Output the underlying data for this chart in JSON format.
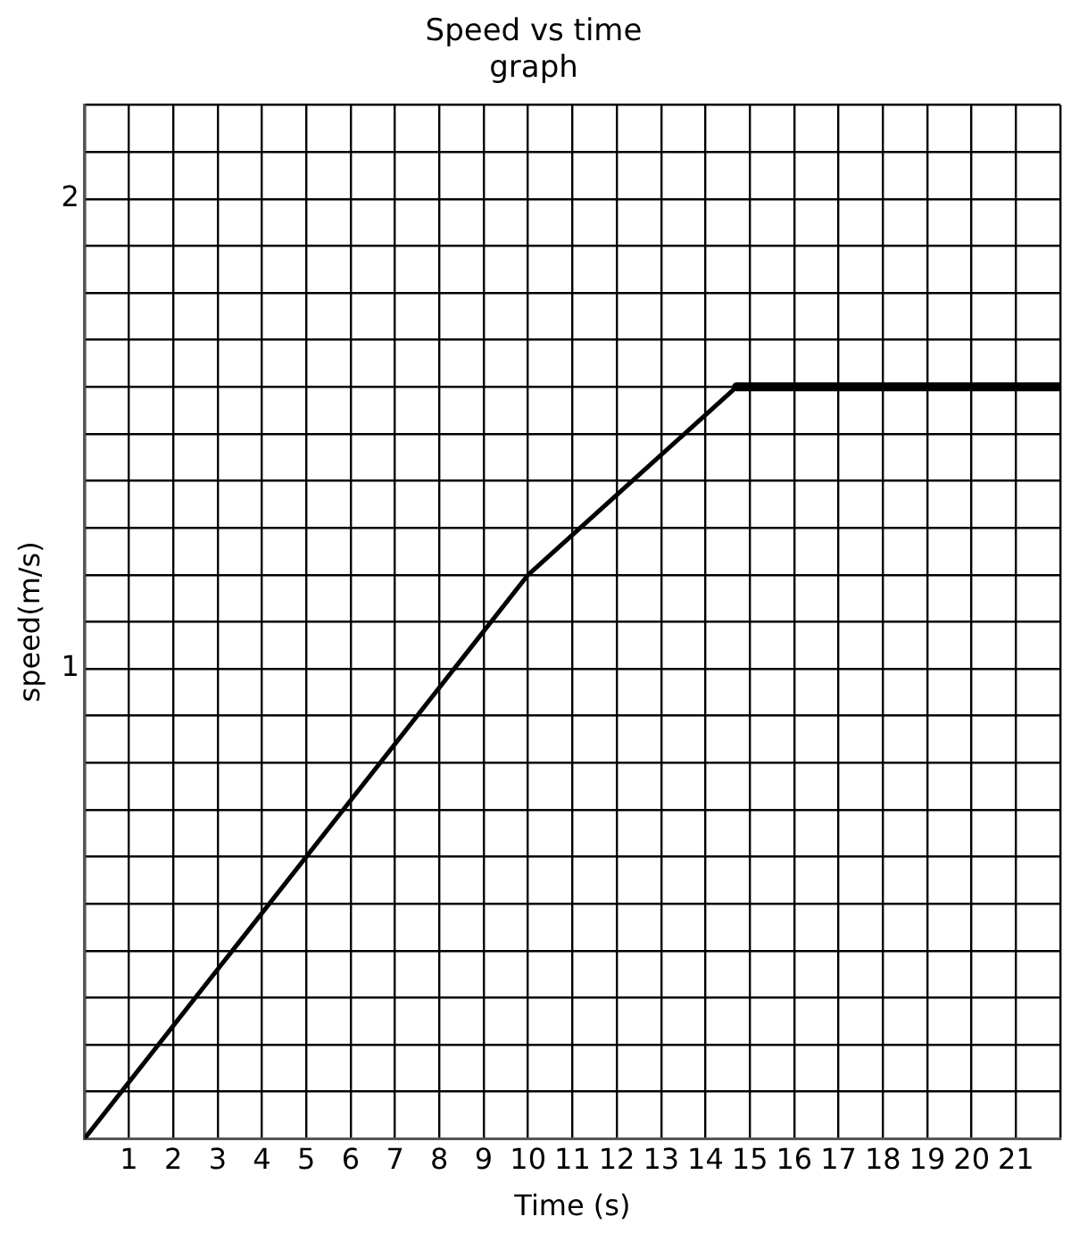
{
  "chart_data": {
    "type": "line",
    "title": "Speed vs time graph",
    "xlabel": "Time (s)",
    "ylabel": "speed(m/s)",
    "x": [
      0,
      10,
      14.7,
      22
    ],
    "series": [
      {
        "color": "#000000",
        "values": [
          0,
          1.2,
          1.6,
          1.6
        ]
      }
    ],
    "xlim": [
      0,
      22
    ],
    "xticks": [
      {
        "value": 0,
        "label": null
      },
      1,
      2,
      3,
      4,
      5,
      6,
      7,
      8,
      9,
      10,
      11,
      12,
      13,
      14,
      15,
      16,
      17,
      18,
      19,
      20,
      21,
      {
        "value": 22,
        "label": null
      }
    ],
    "ylim": [
      0,
      2.2
    ],
    "yticks": [
      {
        "value": 0,
        "label": null
      },
      {
        "value": 0.1,
        "label": null
      },
      {
        "value": 0.2,
        "label": null
      },
      {
        "value": 0.3,
        "label": null
      },
      {
        "value": 0.4,
        "label": null
      },
      {
        "value": 0.5,
        "label": null
      },
      {
        "value": 0.6,
        "label": null
      },
      {
        "value": 0.7,
        "label": null
      },
      {
        "value": 0.8,
        "label": null
      },
      {
        "value": 0.9,
        "label": null
      },
      1,
      {
        "value": 1.1,
        "label": null
      },
      {
        "value": 1.2,
        "label": null
      },
      {
        "value": 1.3,
        "label": null
      },
      {
        "value": 1.4,
        "label": null
      },
      {
        "value": 1.5,
        "label": null
      },
      {
        "value": 1.6,
        "label": null
      },
      {
        "value": 1.7,
        "label": null
      },
      {
        "value": 1.8,
        "label": null
      },
      {
        "value": 1.9,
        "label": null
      },
      2,
      {
        "value": 2.1,
        "label": null
      },
      {
        "value": 2.2,
        "label": null
      }
    ],
    "grid": true,
    "legend": false,
    "marker": "none",
    "line_style": "solid"
  }
}
